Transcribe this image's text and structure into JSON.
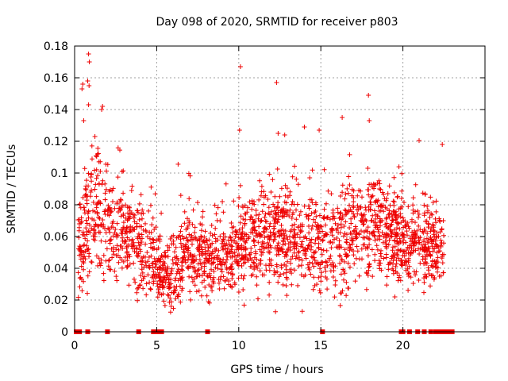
{
  "chart_data": {
    "type": "scatter",
    "title": "Day 098 of 2020, SRMTID for receiver p803",
    "xlabel": "GPS time / hours",
    "ylabel": "SRMTID / TECUs",
    "xlim": [
      0,
      25
    ],
    "ylim": [
      0,
      0.18
    ],
    "x_ticks": [
      0,
      5,
      10,
      15,
      20
    ],
    "y_ticks": [
      0,
      0.02,
      0.04,
      0.06,
      0.08,
      0.1,
      0.12,
      0.14,
      0.16,
      0.18
    ],
    "x_tick_labels": [
      "0",
      "5",
      "10",
      "15",
      "20"
    ],
    "y_tick_labels": [
      "0",
      "0.02",
      "0.04",
      "0.06",
      "0.08",
      "0.1",
      "0.12",
      "0.14",
      "0.16",
      "0.18"
    ],
    "grid": true,
    "marker": "plus",
    "color": "#ee0000",
    "envelope": {
      "hours": [
        0.2,
        0.5,
        0.8,
        1.0,
        1.3,
        1.6,
        2.0,
        2.5,
        3.0,
        3.5,
        4.0,
        4.4,
        4.8,
        5.2,
        5.6,
        6.0,
        6.5,
        7.0,
        7.5,
        8.0,
        8.5,
        9.0,
        9.5,
        10.0,
        10.5,
        11.0,
        11.5,
        12.0,
        12.5,
        13.0,
        13.5,
        14.0,
        14.5,
        15.0,
        15.5,
        16.0,
        16.5,
        17.0,
        17.5,
        18.0,
        18.5,
        19.0,
        19.5,
        20.0,
        20.5,
        21.0,
        21.5,
        22.0,
        22.4
      ],
      "typical_srmtid": [
        0.055,
        0.06,
        0.07,
        0.075,
        0.08,
        0.075,
        0.065,
        0.06,
        0.06,
        0.058,
        0.055,
        0.05,
        0.045,
        0.04,
        0.035,
        0.038,
        0.045,
        0.05,
        0.048,
        0.045,
        0.045,
        0.045,
        0.048,
        0.05,
        0.055,
        0.058,
        0.06,
        0.06,
        0.06,
        0.062,
        0.06,
        0.058,
        0.058,
        0.055,
        0.055,
        0.058,
        0.06,
        0.065,
        0.068,
        0.068,
        0.065,
        0.062,
        0.06,
        0.058,
        0.06,
        0.058,
        0.055,
        0.055,
        0.05
      ],
      "spread": [
        0.02,
        0.025,
        0.03,
        0.03,
        0.025,
        0.025,
        0.02,
        0.02,
        0.02,
        0.02,
        0.02,
        0.018,
        0.015,
        0.012,
        0.012,
        0.015,
        0.015,
        0.015,
        0.015,
        0.015,
        0.015,
        0.015,
        0.015,
        0.018,
        0.018,
        0.02,
        0.02,
        0.02,
        0.02,
        0.02,
        0.02,
        0.02,
        0.02,
        0.02,
        0.02,
        0.02,
        0.02,
        0.02,
        0.02,
        0.02,
        0.02,
        0.02,
        0.018,
        0.018,
        0.018,
        0.018,
        0.018,
        0.015,
        0.015
      ]
    },
    "outliers": [
      {
        "x": 0.5,
        "y": 0.156
      },
      {
        "x": 0.45,
        "y": 0.153
      },
      {
        "x": 0.55,
        "y": 0.133
      },
      {
        "x": 0.85,
        "y": 0.175
      },
      {
        "x": 0.9,
        "y": 0.17
      },
      {
        "x": 0.8,
        "y": 0.158
      },
      {
        "x": 0.88,
        "y": 0.155
      },
      {
        "x": 0.85,
        "y": 0.143
      },
      {
        "x": 1.65,
        "y": 0.14
      },
      {
        "x": 1.7,
        "y": 0.142
      },
      {
        "x": 10.1,
        "y": 0.167
      },
      {
        "x": 10.05,
        "y": 0.127
      },
      {
        "x": 12.3,
        "y": 0.157
      },
      {
        "x": 14.0,
        "y": 0.129
      },
      {
        "x": 14.9,
        "y": 0.127
      },
      {
        "x": 16.3,
        "y": 0.135
      },
      {
        "x": 17.9,
        "y": 0.149
      },
      {
        "x": 17.95,
        "y": 0.133
      },
      {
        "x": 22.4,
        "y": 0.118
      },
      {
        "x": 12.4,
        "y": 0.125
      },
      {
        "x": 12.8,
        "y": 0.124
      }
    ],
    "zero_values_hours": [
      0.1,
      0.2,
      0.3,
      0.8,
      2.0,
      3.9,
      4.8,
      5.0,
      5.1,
      5.3,
      8.1,
      15.1,
      19.9,
      20.0,
      20.4,
      20.9,
      21.3,
      21.7,
      22.0,
      22.2,
      22.4,
      22.5,
      22.6,
      22.7,
      22.8,
      22.9,
      23.0
    ]
  }
}
